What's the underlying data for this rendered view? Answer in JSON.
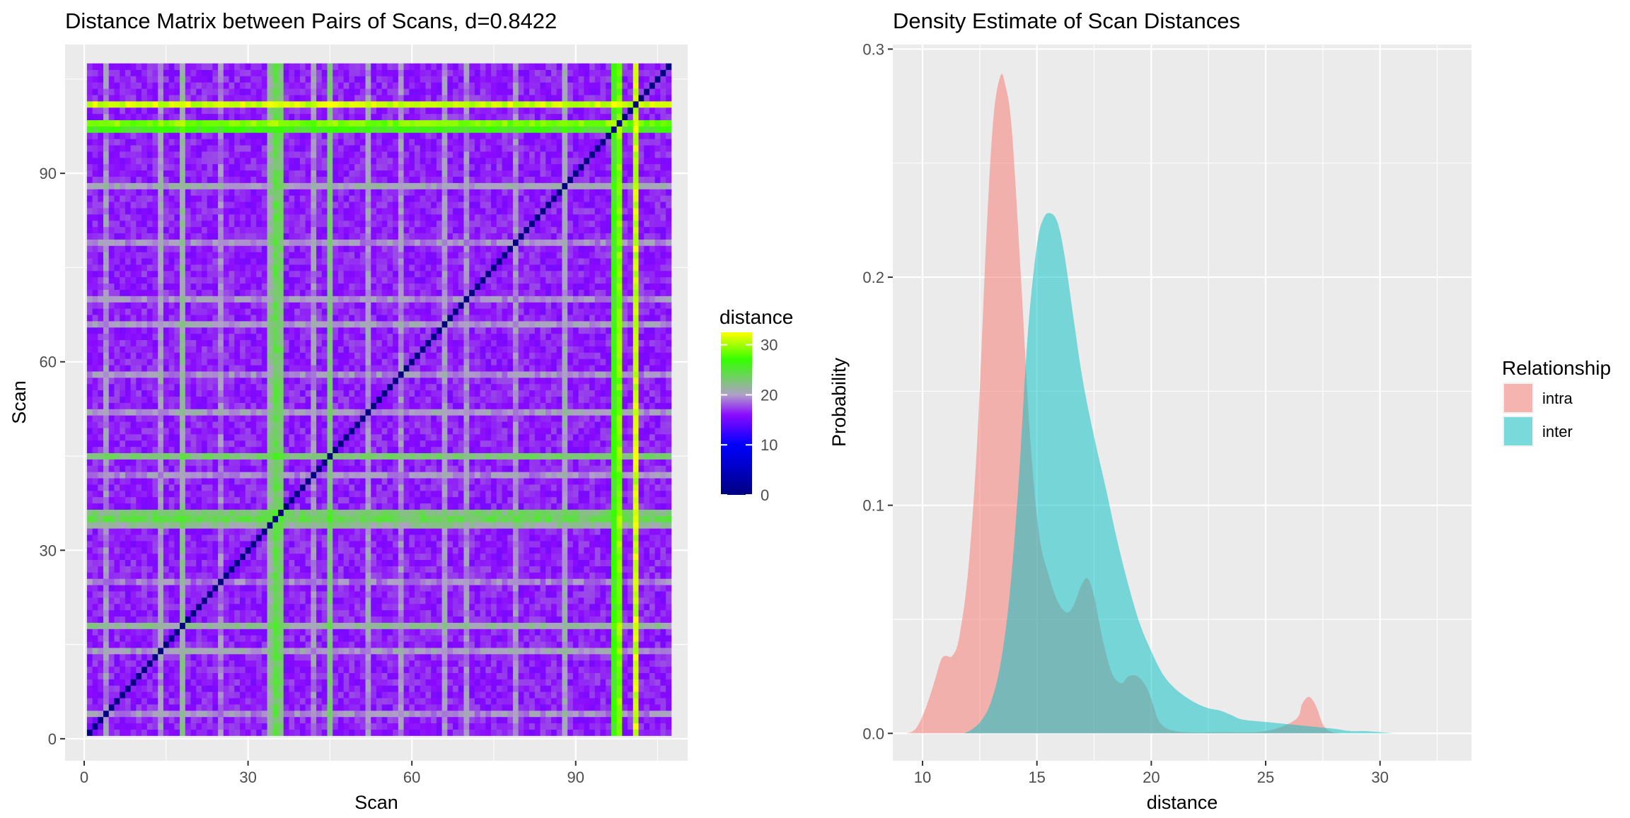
{
  "chart_data": [
    {
      "type": "heatmap",
      "title": "Distance Matrix between Pairs of Scans, d=0.8422",
      "xlabel": "Scan",
      "ylabel": "Scan",
      "n_scans": 107,
      "xlim": [
        -3.5,
        110.5
      ],
      "ylim": [
        -3.5,
        110.5
      ],
      "x_ticks": [
        0,
        30,
        60,
        90
      ],
      "y_ticks": [
        0,
        30,
        60,
        90
      ],
      "grid": true,
      "color_scale": {
        "title": "distance",
        "breaks": [
          0,
          10,
          20,
          30
        ],
        "limits": [
          0,
          32.5
        ],
        "stops": [
          {
            "value": 0,
            "color": "#000080"
          },
          {
            "value": 10,
            "color": "#0000ff"
          },
          {
            "value": 16,
            "color": "#8a0aff"
          },
          {
            "value": 20,
            "color": "#b0a0c8"
          },
          {
            "value": 27,
            "color": "#33ff00"
          },
          {
            "value": 32.5,
            "color": "#ffff00"
          }
        ],
        "legend_position": "right"
      },
      "base_distance": 16.5,
      "bright_scans": [
        {
          "scan": 101,
          "distance": 31
        },
        {
          "scan": 98,
          "distance": 29
        },
        {
          "scan": 35,
          "distance": 24
        },
        {
          "scan": 36,
          "distance": 23
        },
        {
          "scan": 34,
          "distance": 21.5
        },
        {
          "scan": 97,
          "distance": 26
        },
        {
          "scan": 45,
          "distance": 23
        },
        {
          "scan": 18,
          "distance": 21.5
        },
        {
          "scan": 88,
          "distance": 20.5
        },
        {
          "scan": 14,
          "distance": 20
        },
        {
          "scan": 66,
          "distance": 20
        },
        {
          "scan": 52,
          "distance": 20
        },
        {
          "scan": 58,
          "distance": 19.5
        },
        {
          "scan": 70,
          "distance": 19.5
        },
        {
          "scan": 42,
          "distance": 19.5
        },
        {
          "scan": 4,
          "distance": 19.5
        },
        {
          "scan": 79,
          "distance": 19.5
        },
        {
          "scan": 25,
          "distance": 19
        }
      ]
    },
    {
      "type": "area",
      "title": "Density Estimate of Scan Distances",
      "xlabel": "distance",
      "ylabel": "Probability",
      "xlim": [
        8.7,
        34
      ],
      "ylim": [
        -0.012,
        0.302
      ],
      "x_ticks": [
        10,
        15,
        20,
        25,
        30
      ],
      "y_ticks": [
        0.0,
        0.1,
        0.2,
        0.3
      ],
      "y_tick_labels": [
        "0.0",
        "0.1",
        "0.2",
        "0.3"
      ],
      "grid": true,
      "legend": {
        "title": "Relationship",
        "position": "right"
      },
      "series": [
        {
          "name": "intra",
          "color": "#f8766d",
          "x": [
            9.3,
            9.7,
            10.1,
            10.5,
            10.8,
            11.0,
            11.3,
            11.6,
            12.0,
            12.4,
            12.8,
            13.1,
            13.4,
            13.6,
            13.9,
            14.3,
            14.7,
            15.1,
            15.5,
            15.9,
            16.3,
            16.6,
            16.9,
            17.2,
            17.5,
            17.9,
            18.3,
            18.7,
            19.0,
            19.4,
            19.8,
            20.1,
            20.3,
            20.7,
            21.5,
            23.0,
            25.0,
            26.3,
            26.6,
            26.9,
            27.2,
            27.5,
            27.8,
            28.3,
            29.0
          ],
          "y": [
            0.0,
            0.002,
            0.01,
            0.022,
            0.032,
            0.034,
            0.034,
            0.042,
            0.072,
            0.13,
            0.22,
            0.27,
            0.288,
            0.285,
            0.265,
            0.2,
            0.13,
            0.087,
            0.07,
            0.058,
            0.053,
            0.056,
            0.064,
            0.068,
            0.06,
            0.04,
            0.026,
            0.022,
            0.025,
            0.025,
            0.02,
            0.012,
            0.006,
            0.002,
            0.0005,
            0.0005,
            0.001,
            0.006,
            0.013,
            0.016,
            0.012,
            0.004,
            0.001,
            0.0,
            0.0
          ]
        },
        {
          "name": "inter",
          "color": "#00bfc4",
          "x": [
            11.8,
            12.2,
            12.6,
            13.0,
            13.4,
            13.8,
            14.2,
            14.6,
            15.0,
            15.3,
            15.6,
            15.9,
            16.2,
            16.6,
            17.0,
            17.5,
            18.0,
            18.5,
            19.0,
            19.5,
            20.0,
            20.5,
            21.0,
            21.5,
            22.0,
            22.5,
            23.0,
            23.5,
            24.0,
            25.0,
            26.0,
            27.0,
            28.0,
            28.7,
            29.3,
            30.0,
            30.6
          ],
          "y": [
            0.0,
            0.002,
            0.006,
            0.014,
            0.03,
            0.06,
            0.11,
            0.175,
            0.214,
            0.226,
            0.228,
            0.224,
            0.21,
            0.182,
            0.155,
            0.13,
            0.108,
            0.085,
            0.065,
            0.048,
            0.036,
            0.026,
            0.02,
            0.016,
            0.013,
            0.011,
            0.01,
            0.008,
            0.006,
            0.005,
            0.004,
            0.003,
            0.002,
            0.001,
            0.001,
            0.0005,
            0.0
          ]
        }
      ]
    }
  ]
}
